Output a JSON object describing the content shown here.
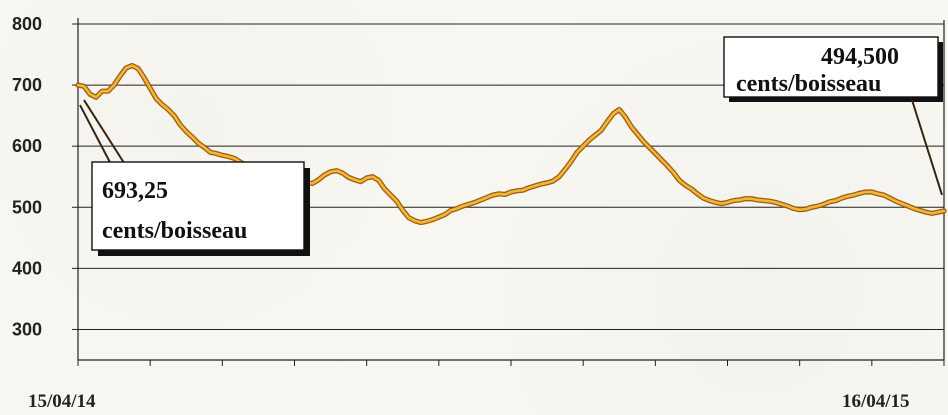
{
  "chart_data": {
    "type": "line",
    "title": "",
    "xlabel": "",
    "ylabel": "",
    "ylim": [
      250,
      800
    ],
    "y_ticks": [
      "800",
      "700",
      "600",
      "500",
      "400",
      "300"
    ],
    "x_ticks": [
      "15/04/14",
      "16/04/15"
    ],
    "grid": true,
    "colors": {
      "line_outer": "#9a5700",
      "line_inner": "#f1b63a",
      "grid": "#222222"
    },
    "series": [
      {
        "values": [
          700,
          698,
          685,
          680,
          690,
          690,
          700,
          715,
          728,
          732,
          727,
          712,
          695,
          678,
          668,
          660,
          650,
          635,
          624,
          615,
          605,
          598,
          590,
          588,
          585,
          583,
          580,
          574,
          568,
          556,
          552,
          549,
          548,
          554,
          558,
          550,
          544,
          542,
          540,
          539,
          545,
          553,
          558,
          560,
          556,
          549,
          545,
          542,
          548,
          550,
          544,
          530,
          520,
          510,
          495,
          483,
          478,
          475,
          477,
          480,
          484,
          488,
          495,
          498,
          502,
          505,
          508,
          512,
          516,
          520,
          522,
          521,
          525,
          527,
          528,
          532,
          535,
          538,
          540,
          543,
          550,
          562,
          575,
          590,
          600,
          610,
          618,
          626,
          640,
          653,
          660,
          648,
          632,
          620,
          608,
          598,
          588,
          578,
          568,
          557,
          544,
          536,
          530,
          522,
          515,
          511,
          508,
          506,
          508,
          511,
          512,
          514,
          514,
          512,
          511,
          510,
          508,
          505,
          502,
          498,
          496,
          497,
          500,
          502,
          505,
          509,
          511,
          515,
          518,
          520,
          523,
          525,
          525,
          522,
          520,
          515,
          510,
          506,
          502,
          498,
          495,
          492,
          490,
          492,
          494
        ]
      }
    ],
    "annotations": [
      {
        "id": "start",
        "value_text": "693,25",
        "unit_text": "cents/boisseau"
      },
      {
        "id": "end",
        "value_text": "494,500",
        "unit_text": "cents/boisseau"
      }
    ]
  }
}
